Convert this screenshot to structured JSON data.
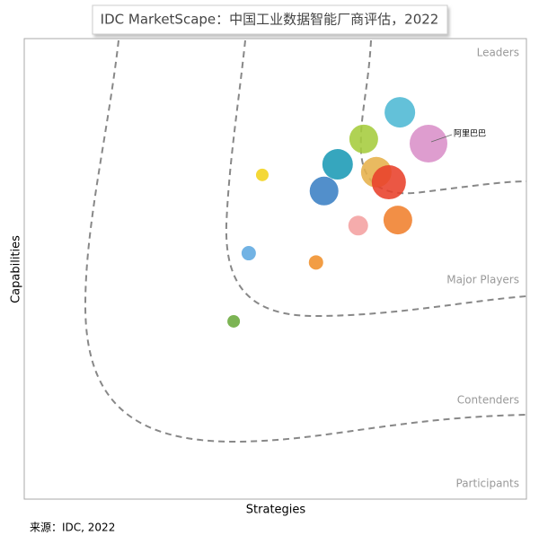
{
  "chart_data": {
    "type": "scatter",
    "title": "IDC MarketScape：中国工业数据智能厂商评估，2022",
    "x_label": "Strategies",
    "y_label": "Capabilities",
    "x": [
      74.8,
      80.5,
      67.6,
      62.4,
      70.1,
      72.6,
      59.7,
      74.4,
      66.5,
      47.4,
      44.7,
      58.1,
      41.7
    ],
    "values": [
      84.0,
      77.2,
      78.2,
      72.7,
      71.0,
      68.8,
      66.9,
      60.6,
      59.4,
      70.4,
      53.4,
      51.4,
      38.6
    ],
    "sizes": [
      17,
      21,
      16,
      17,
      17,
      19,
      16,
      16,
      11,
      7,
      8,
      8,
      7
    ],
    "colors": [
      "#4db8d4",
      "#d98fc8",
      "#a5cc3c",
      "#1a9ab5",
      "#e6b04a",
      "#e8402a",
      "#3a7fc4",
      "#f07f2c",
      "#f4a0a0",
      "#f2d31b",
      "#5fa8e0",
      "#f0902a",
      "#6aaa3c"
    ],
    "point_labels": [
      null,
      "阿里巴巴",
      null,
      null,
      null,
      null,
      null,
      null,
      null,
      null,
      null,
      null,
      null
    ],
    "xlim": [
      0,
      100
    ],
    "ylim": [
      0,
      100
    ],
    "regions": [
      "Leaders",
      "Major Players",
      "Contenders",
      "Participants"
    ],
    "source": "来源：IDC, 2022"
  }
}
